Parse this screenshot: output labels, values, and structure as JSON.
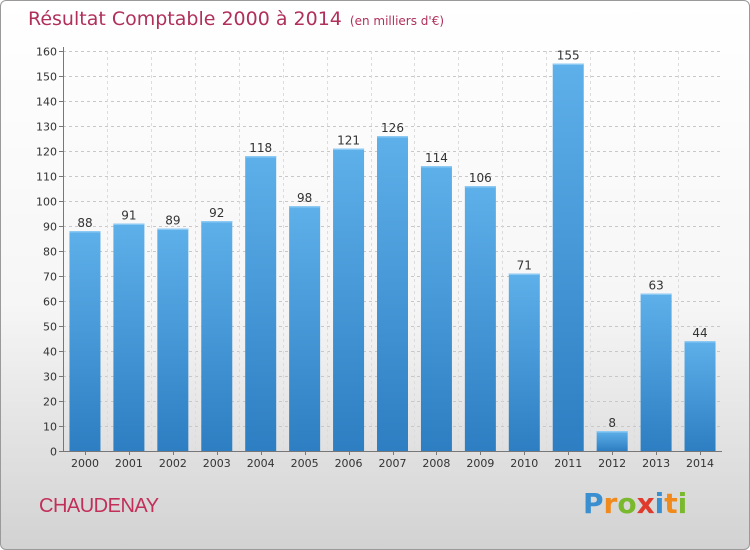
{
  "chart_data": {
    "type": "bar",
    "title": "Résultat Comptable 2000 à 2014",
    "subtitle": "(en milliers d'€)",
    "categories": [
      "2000",
      "2001",
      "2002",
      "2003",
      "2004",
      "2005",
      "2006",
      "2007",
      "2008",
      "2009",
      "2010",
      "2011",
      "2012",
      "2013",
      "2014"
    ],
    "values": [
      88,
      91,
      89,
      92,
      118,
      98,
      121,
      126,
      114,
      106,
      71,
      155,
      8,
      63,
      44
    ],
    "value_labels": [
      "88",
      "91",
      "89",
      "92",
      "118",
      "98",
      "121",
      "126",
      "114",
      "106",
      "71",
      "155",
      "8",
      "63",
      "44"
    ],
    "yticks": [
      "0",
      "10",
      "20",
      "30",
      "40",
      "50",
      "60",
      "70",
      "80",
      "90",
      "100",
      "110",
      "120",
      "130",
      "140",
      "150",
      "160"
    ],
    "ylim": [
      0,
      160
    ],
    "xlabel": "",
    "ylabel": "",
    "grid": true,
    "legend": "none",
    "bar_color": "#3d97dc",
    "bar_color_light": "#5caee8",
    "bar_color_dark": "#2f7fc4"
  },
  "footer": {
    "commune": "CHAUDENAY"
  },
  "brand": {
    "letters": [
      "P",
      "r",
      "o",
      "x",
      "i",
      "t",
      "i"
    ],
    "colors": [
      "#3a8fd0",
      "#f08a1c",
      "#7ab82e",
      "#e03a2c",
      "#3a8fd0",
      "#f08a1c",
      "#7ab82e"
    ]
  }
}
